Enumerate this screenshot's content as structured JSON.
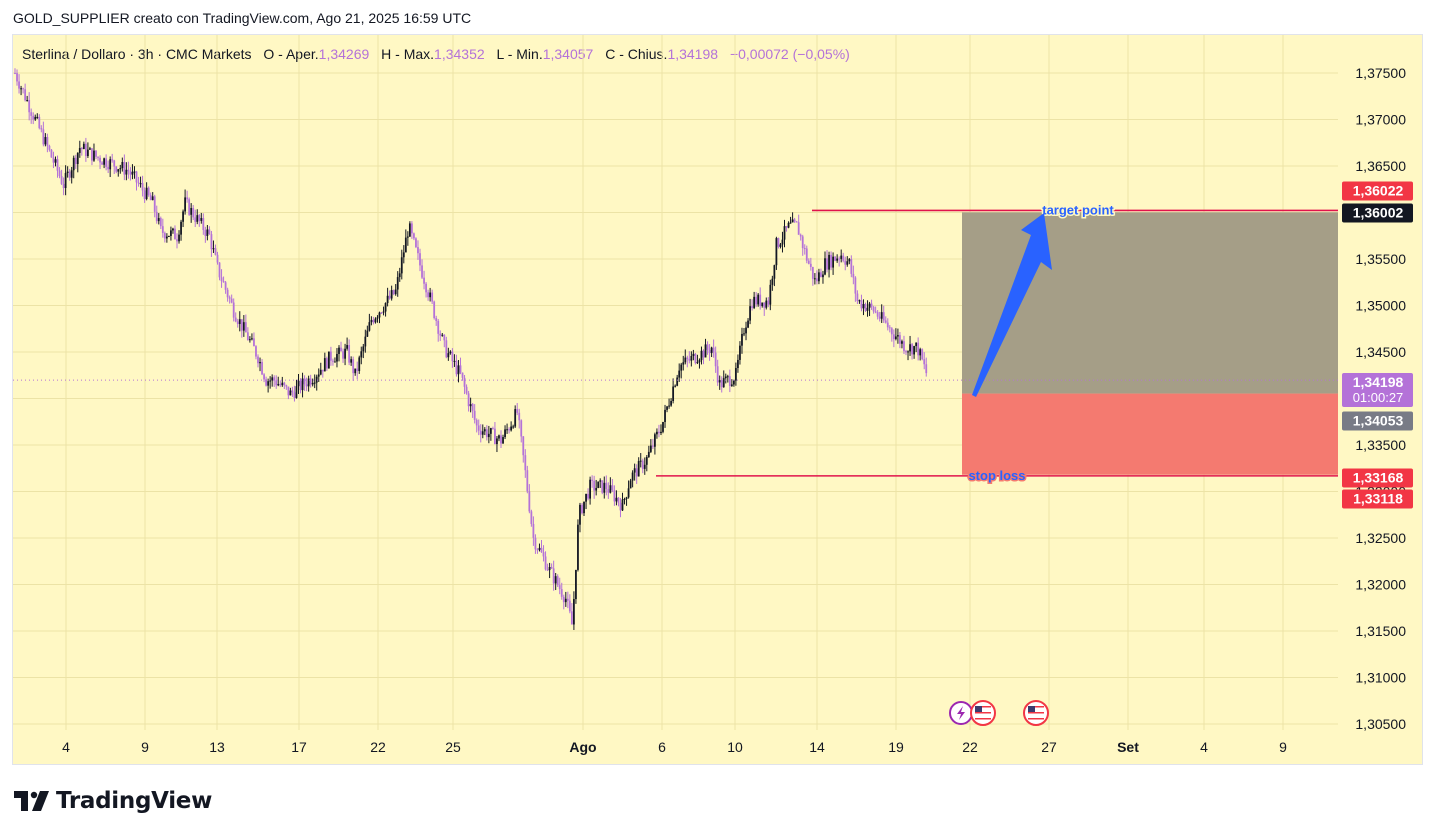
{
  "header": {
    "text": "GOLD_SUPPLIER creato con TradingView.com, Ago 21, 2025 16:59 UTC"
  },
  "legend": {
    "symbol": "Sterlina / Dollaro · 3h · CMC Markets",
    "open_label": "O - Aper.",
    "open": "1,34269",
    "high_label": "H - Max.",
    "high": "1,34352",
    "low_label": "L - Min.",
    "low": "1,34057",
    "close_label": "C - Chius.",
    "close": "1,34198",
    "change": "−0,00072 (−0,05%)"
  },
  "brand": {
    "name": "TradingView"
  },
  "colors": {
    "background": "#fff8c4",
    "candle_up": "#131722",
    "candle_down": "#b472d8",
    "target_zone": "#a59e87",
    "stop_zone": "#f47a70",
    "level_line": "#e0144c",
    "arrow": "#2962ff"
  },
  "chart_data": {
    "type": "candlestick",
    "timeframe": "3h",
    "ylim": [
      1.305,
      1.3775
    ],
    "y_ticks": [
      "1,37500",
      "1,37000",
      "1,36500",
      "1,36000",
      "1,35500",
      "1,35000",
      "1,34500",
      "1,34000",
      "1,33500",
      "1,33000",
      "1,32500",
      "1,32000",
      "1,31500",
      "1,31000",
      "1,30500"
    ],
    "x_ticks": [
      "4",
      "9",
      "13",
      "17",
      "22",
      "25",
      "Ago",
      "6",
      "10",
      "14",
      "19",
      "22",
      "27",
      "Set",
      "4",
      "9"
    ],
    "price_path": [
      [
        0,
        1.375
      ],
      [
        1.5,
        1.369
      ],
      [
        3,
        1.363
      ],
      [
        4,
        1.367
      ],
      [
        5,
        1.366
      ],
      [
        7,
        1.3645
      ],
      [
        8.5,
        1.361
      ],
      [
        9,
        1.358
      ],
      [
        10,
        1.3575
      ],
      [
        10.5,
        1.361
      ],
      [
        12,
        1.3575
      ],
      [
        12.5,
        1.354
      ],
      [
        13.5,
        1.3495
      ],
      [
        15,
        1.3445
      ],
      [
        15.5,
        1.342
      ],
      [
        16,
        1.342
      ],
      [
        17,
        1.3405
      ],
      [
        18.5,
        1.3425
      ],
      [
        19.5,
        1.3445
      ],
      [
        20.5,
        1.345
      ],
      [
        21,
        1.3425
      ],
      [
        22,
        1.3485
      ],
      [
        23.5,
        1.3515
      ],
      [
        24.3,
        1.3585
      ],
      [
        24.8,
        1.3555
      ],
      [
        25.5,
        1.3515
      ],
      [
        26.5,
        1.3455
      ],
      [
        27.5,
        1.3425
      ],
      [
        28.5,
        1.337
      ],
      [
        30,
        1.3355
      ],
      [
        31,
        1.3385
      ],
      [
        31.5,
        1.332
      ],
      [
        32,
        1.325
      ],
      [
        33,
        1.3215
      ],
      [
        34,
        1.3185
      ],
      [
        34.4,
        1.3155
      ],
      [
        34.8,
        1.3275
      ],
      [
        35.5,
        1.3305
      ],
      [
        36.5,
        1.3305
      ],
      [
        37.5,
        1.3285
      ],
      [
        38,
        1.3315
      ],
      [
        39,
        1.3335
      ],
      [
        40,
        1.3375
      ],
      [
        41,
        1.3435
      ],
      [
        42,
        1.3445
      ],
      [
        43,
        1.3455
      ],
      [
        43.5,
        1.3415
      ],
      [
        44.5,
        1.3425
      ],
      [
        45,
        1.3475
      ],
      [
        45.5,
        1.3505
      ],
      [
        46.5,
        1.3505
      ],
      [
        47,
        1.3565
      ],
      [
        47.8,
        1.3585
      ],
      [
        48.3,
        1.3585
      ],
      [
        48.8,
        1.3555
      ],
      [
        49.4,
        1.3525
      ],
      [
        50,
        1.3545
      ],
      [
        51,
        1.3555
      ],
      [
        51.5,
        1.3545
      ],
      [
        52,
        1.3505
      ],
      [
        53,
        1.3495
      ],
      [
        53.5,
        1.3485
      ],
      [
        54,
        1.3475
      ],
      [
        55,
        1.3455
      ],
      [
        55.7,
        1.3455
      ],
      [
        56.3,
        1.3425
      ]
    ],
    "position": {
      "type": "long",
      "entry": 1.34053,
      "target": 1.36002,
      "stop": 1.33118
    },
    "annotations": [
      "target point",
      "stop loss"
    ],
    "price_labels": [
      {
        "text": "1,36022",
        "color": "#f23645"
      },
      {
        "text": "1,36002",
        "color": "#131722"
      },
      {
        "text": "1,34198",
        "text2": "01:00:27",
        "color": "#b472d8"
      },
      {
        "text": "1,34053",
        "color": "#787b86"
      },
      {
        "text": "1,33168",
        "color": "#f23645"
      },
      {
        "text": "1,33118",
        "color": "#f23645"
      }
    ],
    "event_icons": [
      "lightning-icon",
      "us-flag-icon",
      "us-flag-icon"
    ]
  }
}
